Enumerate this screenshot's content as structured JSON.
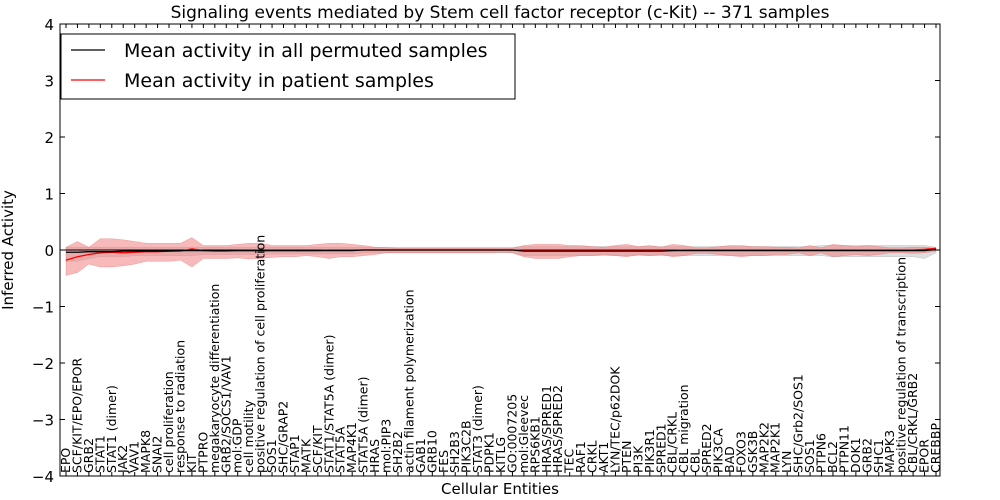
{
  "chart_data": {
    "type": "line",
    "title": "Signaling events mediated by Stem cell factor receptor (c-Kit) -- 371 samples",
    "xlabel": "Cellular Entities",
    "ylabel": "Inferred Activity",
    "ylim": [
      -4,
      4
    ],
    "yticks": [
      -4,
      -3,
      -2,
      -1,
      0,
      1,
      2,
      3,
      4
    ],
    "legend": {
      "placement": "top-left"
    },
    "colors": {
      "permuted": "#000000",
      "patient": "#ff0000",
      "patient_band": "#f08080",
      "permuted_band": "#c8c8c8"
    },
    "categories": [
      "EPO",
      "SCF/KIT/EPO/EPOR",
      "GRB2",
      "STAT1",
      "STAT1 (dimer)",
      "JAK2",
      "VAV1",
      "MAPK8",
      "SNAI2",
      "cell proliferation",
      "response to radiation",
      "KIT",
      "PTPRO",
      "megakaryocyte differentiation",
      "GRB2/SOCS1/VAV1",
      "mol:GDP",
      "cell motility",
      "positive regulation of cell proliferation",
      "SOS1",
      "SHC/GRAP2",
      "STAP1",
      "MATK",
      "SCF/KIT",
      "STAT1/STAT5A (dimer)",
      "STAT5A",
      "MAP4K1",
      "STAT5A (dimer)",
      "HRAS",
      "mol:PIP3",
      "SH2B2",
      "actin filament polymerization",
      "GAB1",
      "GRB10",
      "FES",
      "SH2B3",
      "PIK3C2B",
      "STAT3 (dimer)",
      "PDPK1",
      "KITLG",
      "GO:0007205",
      "mol:Gleevec",
      "RPS6KB1",
      "HRAS/SPRED1",
      "HRAS/SPRED2",
      "TEC",
      "RAF1",
      "CRKL",
      "AKT1",
      "LYN/TEC/p62DOK",
      "PTEN",
      "PI3K",
      "PIK3R1",
      "SPRED1",
      "CBL/CRKL",
      "CBL migration",
      "CBL",
      "SPRED2",
      "PIK3CA",
      "BAD",
      "FOXO3",
      "GSK3B",
      "MAP2K2",
      "MAP2K1",
      "LYN",
      "SHC/Grb2/SOS1",
      "SOS1",
      "PTPN6",
      "BCL2",
      "PTPN11",
      "DOK1",
      "GRB2",
      "SHC1",
      "MAPK3",
      "positive regulation of transcription",
      "CBL/CRKL/GRB2",
      "EPOR",
      "CREBBP"
    ],
    "series": [
      {
        "name": "Mean activity in all permuted samples",
        "color": "#000000",
        "values": [
          -0.04,
          -0.04,
          -0.03,
          -0.03,
          -0.03,
          -0.02,
          -0.02,
          -0.02,
          -0.02,
          -0.02,
          -0.01,
          -0.01,
          -0.01,
          -0.01,
          -0.01,
          -0.01,
          -0.01,
          -0.01,
          -0.01,
          -0.01,
          -0.01,
          -0.01,
          -0.01,
          -0.01,
          -0.01,
          -0.01,
          0,
          0,
          0,
          0,
          0,
          0,
          0,
          0,
          0,
          0,
          0,
          0,
          0,
          0,
          -0.02,
          -0.02,
          -0.02,
          -0.02,
          -0.02,
          -0.02,
          -0.02,
          -0.02,
          -0.02,
          -0.02,
          -0.02,
          -0.02,
          -0.02,
          -0.01,
          -0.01,
          -0.01,
          -0.01,
          -0.01,
          -0.01,
          -0.01,
          -0.01,
          -0.01,
          -0.01,
          -0.01,
          -0.01,
          -0.01,
          -0.01,
          -0.01,
          -0.01,
          -0.01,
          -0.01,
          -0.01,
          -0.01,
          -0.01,
          -0.01,
          -0.01,
          0.01
        ],
        "band_lower": [
          -0.2,
          -0.2,
          -0.15,
          -0.12,
          -0.12,
          -0.12,
          -0.1,
          -0.1,
          -0.1,
          -0.1,
          -0.1,
          -0.1,
          -0.08,
          -0.08,
          -0.08,
          -0.08,
          -0.08,
          -0.08,
          -0.07,
          -0.07,
          -0.07,
          -0.07,
          -0.07,
          -0.07,
          -0.07,
          -0.07,
          -0.05,
          -0.05,
          -0.05,
          -0.05,
          -0.05,
          -0.05,
          -0.05,
          -0.05,
          -0.05,
          -0.05,
          -0.05,
          -0.05,
          -0.05,
          -0.05,
          -0.1,
          -0.1,
          -0.1,
          -0.1,
          -0.1,
          -0.1,
          -0.1,
          -0.1,
          -0.1,
          -0.1,
          -0.1,
          -0.1,
          -0.1,
          -0.1,
          -0.1,
          -0.1,
          -0.1,
          -0.1,
          -0.1,
          -0.1,
          -0.1,
          -0.1,
          -0.1,
          -0.1,
          -0.1,
          -0.1,
          -0.1,
          -0.12,
          -0.12,
          -0.12,
          -0.12,
          -0.12,
          -0.12,
          -0.12,
          -0.12,
          -0.15,
          -0.05
        ],
        "band_upper": [
          0.05,
          0.05,
          0.05,
          0.05,
          0.05,
          0.05,
          0.05,
          0.05,
          0.05,
          0.05,
          0.05,
          0.05,
          0.05,
          0.05,
          0.05,
          0.05,
          0.05,
          0.05,
          0.05,
          0.05,
          0.05,
          0.05,
          0.05,
          0.05,
          0.05,
          0.05,
          0.05,
          0.05,
          0.05,
          0.05,
          0.05,
          0.05,
          0.05,
          0.05,
          0.05,
          0.05,
          0.05,
          0.05,
          0.05,
          0.05,
          0.06,
          0.06,
          0.06,
          0.06,
          0.06,
          0.06,
          0.06,
          0.06,
          0.06,
          0.06,
          0.06,
          0.06,
          0.06,
          0.06,
          0.06,
          0.06,
          0.06,
          0.06,
          0.06,
          0.06,
          0.06,
          0.06,
          0.06,
          0.06,
          0.06,
          0.06,
          0.08,
          0.08,
          0.08,
          0.08,
          0.08,
          0.08,
          0.08,
          0.08,
          0.08,
          0.08,
          0.05
        ]
      },
      {
        "name": "Mean activity in patient samples",
        "color": "#ff0000",
        "values": [
          -0.18,
          -0.12,
          -0.08,
          -0.05,
          -0.04,
          -0.05,
          -0.04,
          -0.03,
          -0.03,
          -0.02,
          -0.02,
          0.02,
          -0.01,
          -0.02,
          -0.02,
          -0.01,
          -0.01,
          -0.01,
          -0.01,
          -0.01,
          -0.01,
          -0.01,
          -0.01,
          0,
          0,
          0,
          0,
          0,
          0,
          0,
          0,
          0,
          0,
          0,
          0,
          0,
          0,
          0,
          0,
          0,
          -0.01,
          -0.01,
          -0.01,
          -0.01,
          -0.01,
          -0.01,
          -0.01,
          -0.01,
          -0.01,
          -0.01,
          -0.01,
          -0.01,
          -0.01,
          -0.01,
          0,
          0,
          0,
          0,
          0,
          0,
          0,
          0,
          0,
          0,
          0,
          0,
          0,
          0,
          0,
          0,
          0,
          0,
          0,
          0,
          0,
          0.01,
          0.03
        ],
        "band_lower": [
          -0.45,
          -0.4,
          -0.25,
          -0.3,
          -0.3,
          -0.28,
          -0.25,
          -0.2,
          -0.2,
          -0.2,
          -0.18,
          -0.3,
          -0.15,
          -0.15,
          -0.15,
          -0.14,
          -0.16,
          -0.15,
          -0.13,
          -0.12,
          -0.12,
          -0.1,
          -0.12,
          -0.15,
          -0.12,
          -0.12,
          -0.1,
          -0.08,
          -0.05,
          -0.05,
          -0.05,
          -0.05,
          -0.05,
          -0.05,
          -0.05,
          -0.05,
          -0.05,
          -0.05,
          -0.04,
          -0.05,
          -0.12,
          -0.15,
          -0.15,
          -0.15,
          -0.12,
          -0.1,
          -0.1,
          -0.08,
          -0.1,
          -0.12,
          -0.08,
          -0.1,
          -0.08,
          -0.12,
          -0.1,
          -0.06,
          -0.06,
          -0.08,
          -0.1,
          -0.12,
          -0.1,
          -0.1,
          -0.08,
          -0.08,
          -0.05,
          -0.1,
          -0.05,
          -0.12,
          -0.1,
          -0.08,
          -0.1,
          -0.08,
          -0.05,
          -0.05,
          -0.06,
          -0.05,
          -0.02
        ],
        "band_upper": [
          0.05,
          0.15,
          0.05,
          0.2,
          0.2,
          0.18,
          0.15,
          0.12,
          0.12,
          0.12,
          0.12,
          0.22,
          0.08,
          0.08,
          0.08,
          0.1,
          0.12,
          0.12,
          0.08,
          0.08,
          0.08,
          0.08,
          0.1,
          0.12,
          0.12,
          0.1,
          0.08,
          0.05,
          0.04,
          0.03,
          0.03,
          0.03,
          0.03,
          0.03,
          0.03,
          0.03,
          0.03,
          0.03,
          0.03,
          0.03,
          0.08,
          0.1,
          0.1,
          0.1,
          0.08,
          0.08,
          0.06,
          0.05,
          0.08,
          0.1,
          0.06,
          0.08,
          0.05,
          0.1,
          0.08,
          0.04,
          0.04,
          0.06,
          0.08,
          0.08,
          0.06,
          0.06,
          0.05,
          0.05,
          0.04,
          0.08,
          0.04,
          0.1,
          0.08,
          0.06,
          0.08,
          0.06,
          0.04,
          0.04,
          0.05,
          0.05,
          0.03
        ]
      }
    ]
  }
}
